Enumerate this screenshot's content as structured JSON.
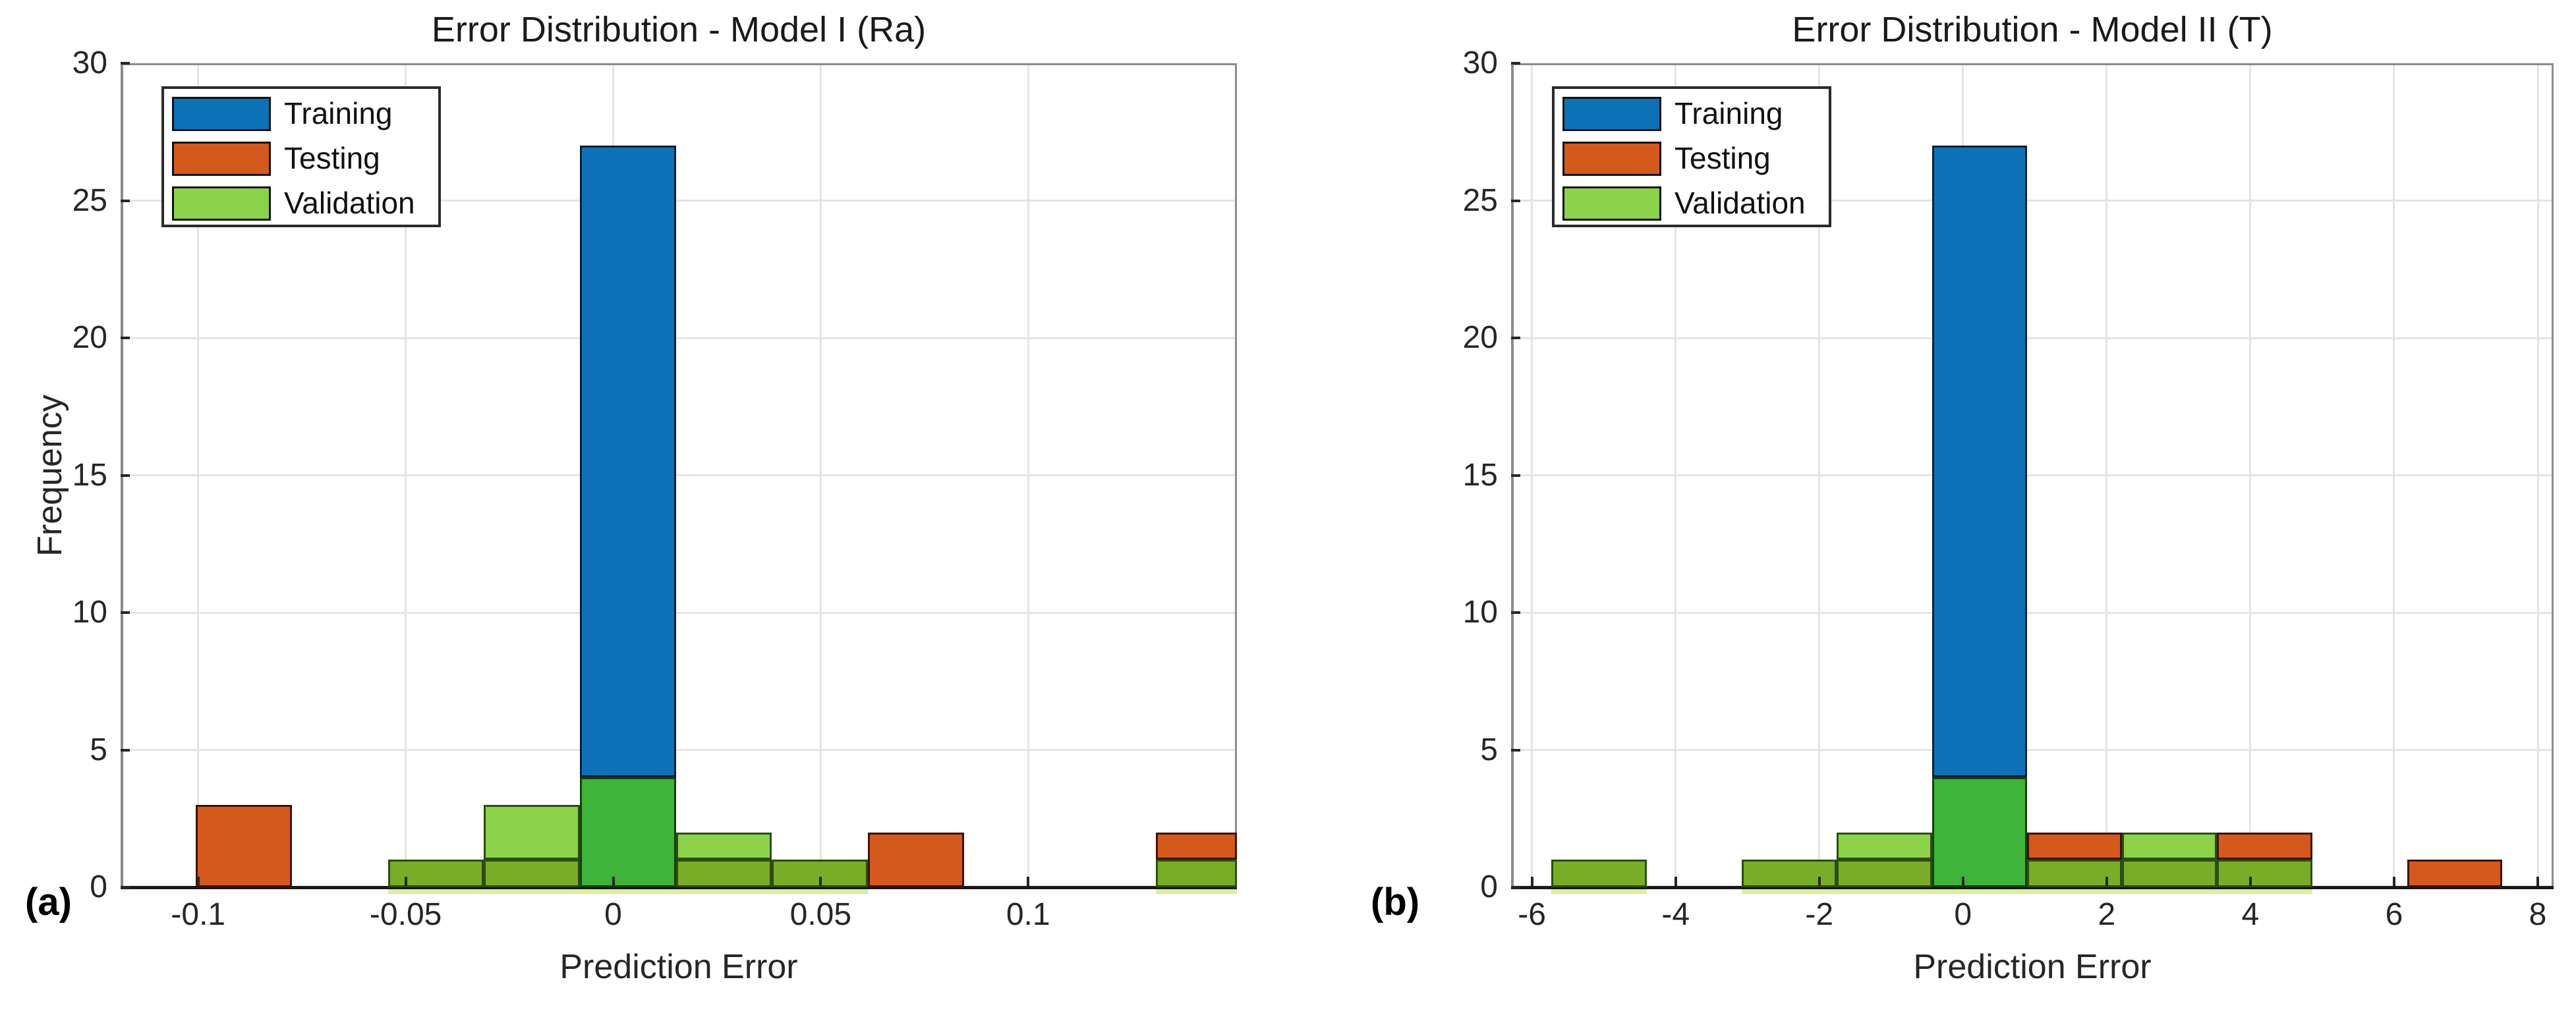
{
  "figure": {
    "background": "#ffffff",
    "description": "Two side-by-side MATLAB-style overlaid histograms of prediction errors"
  },
  "colors": {
    "training_blue": "#0d72b8",
    "testing_orange": "#d4591d",
    "validation_green": "#8cd24a",
    "green_over_testing": "#79ad28",
    "green_over_training": "#3fb33a",
    "glow": "#d8efa2",
    "grid": "#e4e4e4",
    "spine": "#8c8c8c",
    "axis": "#1a1a1a",
    "text": "#262626",
    "note": "green_over_testing and green_over_training are the blended colors where the semi-transparent Validation bars overlap Testing / Training bars"
  },
  "chart_data": [
    {
      "type": "bar",
      "subtype": "overlaid-histogram",
      "panel_label": "(a)",
      "title": "Error Distribution - Model I (Ra)",
      "xlabel": "Prediction Error",
      "ylabel": "Frequency",
      "xlim": [
        -0.1187,
        0.1503
      ],
      "ylim": [
        0,
        30
      ],
      "grid": true,
      "legend_position": "top-left",
      "legend": [
        {
          "label": "Training",
          "color": "training_blue"
        },
        {
          "label": "Testing",
          "color": "testing_orange"
        },
        {
          "label": "Validation",
          "color": "validation_green"
        }
      ],
      "xticks": [
        {
          "v": -0.1,
          "label": "-0.1"
        },
        {
          "v": -0.05,
          "label": "-0.05"
        },
        {
          "v": 0,
          "label": "0"
        },
        {
          "v": 0.05,
          "label": "0.05"
        },
        {
          "v": 0.1,
          "label": "0.1"
        }
      ],
      "yticks": [
        {
          "v": 0,
          "label": "0"
        },
        {
          "v": 5,
          "label": "5"
        },
        {
          "v": 10,
          "label": "10"
        },
        {
          "v": 15,
          "label": "15"
        },
        {
          "v": 20,
          "label": "20"
        },
        {
          "v": 25,
          "label": "25"
        },
        {
          "v": 30,
          "label": "30"
        }
      ],
      "series": [
        {
          "name": "Training",
          "color": "training_blue",
          "bins": [
            {
              "x0": -0.008,
              "x1": 0.015,
              "count": 27
            }
          ]
        },
        {
          "name": "Testing",
          "color": "testing_orange",
          "bins": [
            {
              "x0": -0.1006,
              "x1": -0.0774,
              "count": 3
            },
            {
              "x0": 0.0614,
              "x1": 0.0845,
              "count": 2
            },
            {
              "x0": 0.1308,
              "x1": 0.1539,
              "count": 2
            }
          ]
        },
        {
          "name": "Validation",
          "color": "validation_green",
          "bins": [
            {
              "x0": -0.0543,
              "x1": -0.0312,
              "count": 1
            },
            {
              "x0": -0.0312,
              "x1": -0.008,
              "count": 3
            },
            {
              "x0": -0.008,
              "x1": 0.0151,
              "count": 4
            },
            {
              "x0": 0.0151,
              "x1": 0.0382,
              "count": 2
            },
            {
              "x0": 0.0382,
              "x1": 0.0614,
              "count": 1
            },
            {
              "x0": 0.1308,
              "x1": 0.1539,
              "count": 1
            }
          ]
        }
      ],
      "bars": [
        {
          "x0": -0.1006,
          "x1": -0.0774,
          "segments": [
            {
              "y0": 0,
              "y1": 3,
              "color": "testing_orange"
            }
          ]
        },
        {
          "x0": -0.0543,
          "x1": -0.0312,
          "segments": [
            {
              "y0": 0,
              "y1": 1,
              "color": "green_over_testing"
            }
          ]
        },
        {
          "x0": -0.0312,
          "x1": -0.008,
          "segments": [
            {
              "y0": 0,
              "y1": 1,
              "color": "green_over_testing"
            },
            {
              "y0": 1,
              "y1": 3,
              "color": "validation_green"
            }
          ]
        },
        {
          "x0": -0.008,
          "x1": 0.0151,
          "segments": [
            {
              "y0": 0,
              "y1": 4,
              "color": "green_over_training"
            },
            {
              "y0": 4,
              "y1": 27,
              "color": "training_blue"
            }
          ]
        },
        {
          "x0": 0.0151,
          "x1": 0.0382,
          "segments": [
            {
              "y0": 0,
              "y1": 1,
              "color": "green_over_testing"
            },
            {
              "y0": 1,
              "y1": 2,
              "color": "validation_green"
            }
          ]
        },
        {
          "x0": 0.0382,
          "x1": 0.0614,
          "segments": [
            {
              "y0": 0,
              "y1": 1,
              "color": "green_over_testing"
            }
          ]
        },
        {
          "x0": 0.0614,
          "x1": 0.0845,
          "segments": [
            {
              "y0": 0,
              "y1": 2,
              "color": "testing_orange"
            }
          ]
        },
        {
          "x0": 0.1308,
          "x1": 0.1503,
          "segments": [
            {
              "y0": 0,
              "y1": 1,
              "color": "green_over_testing"
            },
            {
              "y0": 1,
              "y1": 2,
              "color": "testing_orange"
            }
          ]
        }
      ]
    },
    {
      "type": "bar",
      "subtype": "overlaid-histogram",
      "panel_label": "(b)",
      "title": "Error Distribution - Model II (T)",
      "xlabel": "Prediction Error",
      "ylabel": "",
      "xlim": [
        -6.29,
        8.22
      ],
      "ylim": [
        0,
        30
      ],
      "grid": true,
      "legend_position": "top-left",
      "legend": [
        {
          "label": "Training",
          "color": "training_blue"
        },
        {
          "label": "Testing",
          "color": "testing_orange"
        },
        {
          "label": "Validation",
          "color": "validation_green"
        }
      ],
      "xticks": [
        {
          "v": -6,
          "label": "-6"
        },
        {
          "v": -4,
          "label": "-4"
        },
        {
          "v": -2,
          "label": "-2"
        },
        {
          "v": 0,
          "label": "0"
        },
        {
          "v": 2,
          "label": "2"
        },
        {
          "v": 4,
          "label": "4"
        },
        {
          "v": 6,
          "label": "6"
        },
        {
          "v": 8,
          "label": "8"
        }
      ],
      "yticks": [
        {
          "v": 0,
          "label": "0"
        },
        {
          "v": 5,
          "label": "5"
        },
        {
          "v": 10,
          "label": "10"
        },
        {
          "v": 15,
          "label": "15"
        },
        {
          "v": 20,
          "label": "20"
        },
        {
          "v": 25,
          "label": "25"
        },
        {
          "v": 30,
          "label": "30"
        }
      ],
      "series": [
        {
          "name": "Training",
          "color": "training_blue",
          "bins": [
            {
              "x0": -0.433,
              "x1": 0.89,
              "count": 27
            }
          ]
        },
        {
          "name": "Testing",
          "color": "testing_orange",
          "bins": [
            {
              "x0": 0.89,
              "x1": 2.214,
              "count": 2
            },
            {
              "x0": 3.537,
              "x1": 4.86,
              "count": 2
            },
            {
              "x0": 6.184,
              "x1": 7.507,
              "count": 1
            }
          ]
        },
        {
          "name": "Validation",
          "color": "validation_green",
          "bins": [
            {
              "x0": -5.727,
              "x1": -4.403,
              "count": 1
            },
            {
              "x0": -3.08,
              "x1": -1.757,
              "count": 1
            },
            {
              "x0": -1.757,
              "x1": -0.433,
              "count": 2
            },
            {
              "x0": -0.433,
              "x1": 0.89,
              "count": 4
            },
            {
              "x0": 0.89,
              "x1": 2.214,
              "count": 1
            },
            {
              "x0": 2.214,
              "x1": 3.537,
              "count": 2
            },
            {
              "x0": 3.537,
              "x1": 4.86,
              "count": 1
            }
          ]
        }
      ],
      "bars": [
        {
          "x0": -5.727,
          "x1": -4.403,
          "segments": [
            {
              "y0": 0,
              "y1": 1,
              "color": "green_over_testing"
            }
          ]
        },
        {
          "x0": -3.08,
          "x1": -1.757,
          "segments": [
            {
              "y0": 0,
              "y1": 1,
              "color": "green_over_testing"
            }
          ]
        },
        {
          "x0": -1.757,
          "x1": -0.433,
          "segments": [
            {
              "y0": 0,
              "y1": 1,
              "color": "green_over_testing"
            },
            {
              "y0": 1,
              "y1": 2,
              "color": "validation_green"
            }
          ]
        },
        {
          "x0": -0.433,
          "x1": 0.89,
          "segments": [
            {
              "y0": 0,
              "y1": 4,
              "color": "green_over_training"
            },
            {
              "y0": 4,
              "y1": 27,
              "color": "training_blue"
            }
          ]
        },
        {
          "x0": 0.89,
          "x1": 2.214,
          "segments": [
            {
              "y0": 0,
              "y1": 1,
              "color": "green_over_testing"
            },
            {
              "y0": 1,
              "y1": 2,
              "color": "testing_orange"
            }
          ]
        },
        {
          "x0": 2.214,
          "x1": 3.537,
          "segments": [
            {
              "y0": 0,
              "y1": 1,
              "color": "green_over_testing"
            },
            {
              "y0": 1,
              "y1": 2,
              "color": "validation_green"
            }
          ]
        },
        {
          "x0": 3.537,
          "x1": 4.86,
          "segments": [
            {
              "y0": 0,
              "y1": 1,
              "color": "green_over_testing"
            },
            {
              "y0": 1,
              "y1": 2,
              "color": "testing_orange"
            }
          ]
        },
        {
          "x0": 6.184,
          "x1": 7.507,
          "segments": [
            {
              "y0": 0,
              "y1": 1,
              "color": "testing_orange"
            }
          ]
        }
      ]
    }
  ]
}
